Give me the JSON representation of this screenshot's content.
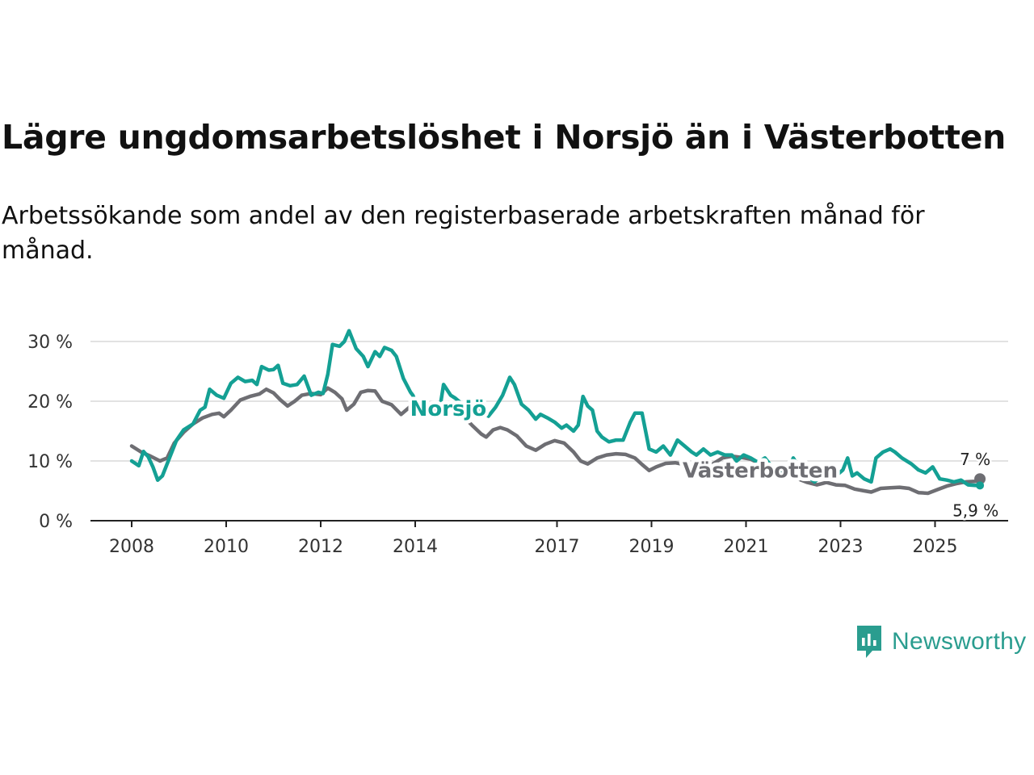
{
  "header": {
    "title": "Lägre ungdomsarbetslöshet i Norsjö än i Västerbotten",
    "subtitle": "Arbetssökande som andel av den registerbaserade arbetskraften månad för månad."
  },
  "brand": {
    "name": "Newsworthy",
    "color": "#2a9d8f"
  },
  "chart_data": {
    "type": "line",
    "title": "Lägre ungdomsarbetslöshet i Norsjö än i Västerbotten",
    "subtitle": "Arbetssökande som andel av den registerbaserade arbetskraften månad för månad.",
    "xlabel": "",
    "ylabel": "",
    "xlim": [
      2007.0,
      2026.5
    ],
    "ylim": [
      0,
      31
    ],
    "y_ticks": [
      {
        "value": 0,
        "label": "0 %"
      },
      {
        "value": 10,
        "label": "10 %"
      },
      {
        "value": 20,
        "label": "20 %"
      },
      {
        "value": 30,
        "label": "30 %"
      }
    ],
    "x_ticks": [
      {
        "value": 2008,
        "label": "2008"
      },
      {
        "value": 2010,
        "label": "2010"
      },
      {
        "value": 2012,
        "label": "2012"
      },
      {
        "value": 2014,
        "label": "2014"
      },
      {
        "value": 2017,
        "label": "2017"
      },
      {
        "value": 2019,
        "label": "2019"
      },
      {
        "value": 2021,
        "label": "2021"
      },
      {
        "value": 2023,
        "label": "2023"
      },
      {
        "value": 2025,
        "label": "2025"
      }
    ],
    "grid": true,
    "series": [
      {
        "name": "Västerbotten",
        "color": "#6e6e73",
        "end_label": "7 %",
        "points": [
          [
            2008.0,
            12.5
          ],
          [
            2008.2,
            11.5
          ],
          [
            2008.4,
            10.8
          ],
          [
            2008.6,
            10.0
          ],
          [
            2008.75,
            10.5
          ],
          [
            2008.9,
            13.0
          ],
          [
            2009.1,
            14.8
          ],
          [
            2009.3,
            16.2
          ],
          [
            2009.5,
            17.2
          ],
          [
            2009.7,
            17.8
          ],
          [
            2009.85,
            18.0
          ],
          [
            2009.95,
            17.4
          ],
          [
            2010.1,
            18.5
          ],
          [
            2010.3,
            20.2
          ],
          [
            2010.5,
            20.8
          ],
          [
            2010.7,
            21.2
          ],
          [
            2010.85,
            22.0
          ],
          [
            2011.0,
            21.4
          ],
          [
            2011.15,
            20.2
          ],
          [
            2011.3,
            19.2
          ],
          [
            2011.45,
            20.0
          ],
          [
            2011.6,
            21.0
          ],
          [
            2011.8,
            21.3
          ],
          [
            2012.0,
            21.1
          ],
          [
            2012.15,
            22.2
          ],
          [
            2012.3,
            21.5
          ],
          [
            2012.45,
            20.4
          ],
          [
            2012.55,
            18.5
          ],
          [
            2012.7,
            19.5
          ],
          [
            2012.85,
            21.5
          ],
          [
            2013.0,
            21.8
          ],
          [
            2013.15,
            21.7
          ],
          [
            2013.3,
            20.0
          ],
          [
            2013.5,
            19.4
          ],
          [
            2013.7,
            17.8
          ],
          [
            2013.85,
            18.8
          ],
          [
            2014.0,
            20.0
          ],
          [
            2014.2,
            19.8
          ],
          [
            2014.4,
            19.4
          ],
          [
            2014.6,
            19.0
          ],
          [
            2014.8,
            18.0
          ],
          [
            2015.0,
            17.6
          ],
          [
            2015.2,
            16.0
          ],
          [
            2015.4,
            14.5
          ],
          [
            2015.5,
            14.0
          ],
          [
            2015.65,
            15.2
          ],
          [
            2015.8,
            15.6
          ],
          [
            2015.95,
            15.2
          ],
          [
            2016.15,
            14.2
          ],
          [
            2016.35,
            12.5
          ],
          [
            2016.55,
            11.8
          ],
          [
            2016.75,
            12.8
          ],
          [
            2016.95,
            13.4
          ],
          [
            2017.15,
            13.0
          ],
          [
            2017.35,
            11.5
          ],
          [
            2017.5,
            10.0
          ],
          [
            2017.65,
            9.5
          ],
          [
            2017.85,
            10.5
          ],
          [
            2018.05,
            11.0
          ],
          [
            2018.25,
            11.2
          ],
          [
            2018.45,
            11.1
          ],
          [
            2018.65,
            10.5
          ],
          [
            2018.8,
            9.4
          ],
          [
            2018.95,
            8.4
          ],
          [
            2019.1,
            9.0
          ],
          [
            2019.3,
            9.6
          ],
          [
            2019.5,
            9.7
          ],
          [
            2019.7,
            9.4
          ],
          [
            2019.9,
            8.2
          ],
          [
            2020.1,
            8.5
          ],
          [
            2020.3,
            9.5
          ],
          [
            2020.5,
            10.5
          ],
          [
            2020.7,
            10.8
          ],
          [
            2020.9,
            10.6
          ],
          [
            2021.1,
            10.3
          ],
          [
            2021.3,
            9.5
          ],
          [
            2021.5,
            8.8
          ],
          [
            2021.7,
            8.3
          ],
          [
            2021.9,
            7.6
          ],
          [
            2022.1,
            7.0
          ],
          [
            2022.3,
            6.4
          ],
          [
            2022.5,
            6.0
          ],
          [
            2022.7,
            6.4
          ],
          [
            2022.9,
            6.0
          ],
          [
            2023.1,
            5.9
          ],
          [
            2023.3,
            5.3
          ],
          [
            2023.5,
            5.0
          ],
          [
            2023.65,
            4.8
          ],
          [
            2023.85,
            5.4
          ],
          [
            2024.05,
            5.5
          ],
          [
            2024.25,
            5.6
          ],
          [
            2024.45,
            5.4
          ],
          [
            2024.65,
            4.7
          ],
          [
            2024.85,
            4.6
          ],
          [
            2025.05,
            5.2
          ],
          [
            2025.25,
            5.8
          ],
          [
            2025.45,
            6.2
          ],
          [
            2025.65,
            6.5
          ],
          [
            2025.85,
            6.6
          ],
          [
            2025.95,
            7.0
          ]
        ]
      },
      {
        "name": "Norsjö",
        "color": "#14a094",
        "end_label": "5,9 %",
        "points": [
          [
            2008.0,
            10.0
          ],
          [
            2008.15,
            9.2
          ],
          [
            2008.25,
            11.6
          ],
          [
            2008.35,
            10.7
          ],
          [
            2008.45,
            9.0
          ],
          [
            2008.55,
            6.8
          ],
          [
            2008.65,
            7.5
          ],
          [
            2008.8,
            10.5
          ],
          [
            2008.95,
            13.5
          ],
          [
            2009.1,
            15.2
          ],
          [
            2009.3,
            16.2
          ],
          [
            2009.45,
            18.5
          ],
          [
            2009.55,
            19.0
          ],
          [
            2009.65,
            22.0
          ],
          [
            2009.8,
            21.0
          ],
          [
            2009.95,
            20.5
          ],
          [
            2010.1,
            23.0
          ],
          [
            2010.25,
            24.0
          ],
          [
            2010.4,
            23.3
          ],
          [
            2010.55,
            23.5
          ],
          [
            2010.65,
            22.8
          ],
          [
            2010.75,
            25.8
          ],
          [
            2010.9,
            25.2
          ],
          [
            2011.0,
            25.3
          ],
          [
            2011.1,
            26.0
          ],
          [
            2011.2,
            23.0
          ],
          [
            2011.35,
            22.6
          ],
          [
            2011.5,
            22.8
          ],
          [
            2011.65,
            24.2
          ],
          [
            2011.8,
            21.0
          ],
          [
            2011.95,
            21.5
          ],
          [
            2012.05,
            21.3
          ],
          [
            2012.15,
            24.5
          ],
          [
            2012.25,
            29.5
          ],
          [
            2012.4,
            29.2
          ],
          [
            2012.5,
            30.0
          ],
          [
            2012.6,
            31.8
          ],
          [
            2012.75,
            28.8
          ],
          [
            2012.9,
            27.5
          ],
          [
            2013.0,
            25.8
          ],
          [
            2013.15,
            28.3
          ],
          [
            2013.25,
            27.5
          ],
          [
            2013.35,
            29.0
          ],
          [
            2013.5,
            28.5
          ],
          [
            2013.6,
            27.5
          ],
          [
            2013.75,
            23.8
          ],
          [
            2013.9,
            21.5
          ],
          [
            2013.95,
            21.0
          ],
          [
            2014.1,
            18.0
          ],
          [
            2014.2,
            17.5
          ],
          [
            2014.3,
            19.5
          ],
          [
            2014.4,
            19.5
          ],
          [
            2014.5,
            17.8
          ],
          [
            2014.6,
            22.8
          ],
          [
            2014.75,
            21.0
          ],
          [
            2014.85,
            20.5
          ],
          [
            2015.0,
            19.5
          ],
          [
            2015.15,
            19.2
          ],
          [
            2015.3,
            19.5
          ],
          [
            2015.45,
            18.0
          ],
          [
            2015.55,
            17.5
          ],
          [
            2015.7,
            19.0
          ],
          [
            2015.85,
            21.0
          ],
          [
            2016.0,
            24.0
          ],
          [
            2016.1,
            22.8
          ],
          [
            2016.25,
            19.5
          ],
          [
            2016.4,
            18.5
          ],
          [
            2016.55,
            17.0
          ],
          [
            2016.65,
            17.8
          ],
          [
            2016.8,
            17.2
          ],
          [
            2016.95,
            16.5
          ],
          [
            2017.1,
            15.5
          ],
          [
            2017.2,
            16.0
          ],
          [
            2017.35,
            15.0
          ],
          [
            2017.45,
            16.0
          ],
          [
            2017.55,
            20.8
          ],
          [
            2017.65,
            19.2
          ],
          [
            2017.75,
            18.5
          ],
          [
            2017.85,
            15.0
          ],
          [
            2017.95,
            14.0
          ],
          [
            2018.1,
            13.2
          ],
          [
            2018.25,
            13.5
          ],
          [
            2018.4,
            13.5
          ],
          [
            2018.55,
            16.5
          ],
          [
            2018.65,
            18.0
          ],
          [
            2018.8,
            18.0
          ],
          [
            2018.95,
            12.0
          ],
          [
            2019.1,
            11.5
          ],
          [
            2019.25,
            12.5
          ],
          [
            2019.4,
            11.0
          ],
          [
            2019.55,
            13.5
          ],
          [
            2019.7,
            12.5
          ],
          [
            2019.85,
            11.5
          ],
          [
            2019.95,
            11.0
          ]
        ]
      },
      {
        "name": "Norsjö",
        "color": "#14a094",
        "segment": 2,
        "points": [
          [
            2019.95,
            11.0
          ],
          [
            2020.1,
            12.0
          ],
          [
            2020.25,
            11.0
          ],
          [
            2020.4,
            11.5
          ],
          [
            2020.55,
            11.0
          ],
          [
            2020.7,
            11.0
          ],
          [
            2020.8,
            10.0
          ],
          [
            2020.95,
            11.0
          ],
          [
            2021.1,
            10.5
          ],
          [
            2021.25,
            9.8
          ],
          [
            2021.4,
            10.5
          ],
          [
            2021.55,
            9.0
          ],
          [
            2021.7,
            8.0
          ],
          [
            2021.85,
            7.5
          ],
          [
            2022.0,
            10.5
          ],
          [
            2022.15,
            8.5
          ],
          [
            2022.3,
            7.5
          ],
          [
            2022.45,
            6.5
          ],
          [
            2022.6,
            7.5
          ],
          [
            2022.75,
            8.0
          ],
          [
            2022.9,
            7.5
          ],
          [
            2023.05,
            8.5
          ],
          [
            2023.15,
            10.5
          ],
          [
            2023.25,
            7.5
          ],
          [
            2023.35,
            8.0
          ],
          [
            2023.5,
            7.0
          ],
          [
            2023.65,
            6.5
          ],
          [
            2023.75,
            10.5
          ],
          [
            2023.9,
            11.5
          ],
          [
            2024.05,
            12.0
          ],
          [
            2024.15,
            11.5
          ],
          [
            2024.3,
            10.5
          ],
          [
            2024.5,
            9.5
          ],
          [
            2024.65,
            8.5
          ],
          [
            2024.8,
            8.0
          ],
          [
            2024.95,
            9.0
          ],
          [
            2025.1,
            7.0
          ],
          [
            2025.25,
            6.8
          ],
          [
            2025.4,
            6.5
          ],
          [
            2025.55,
            6.8
          ],
          [
            2025.7,
            6.0
          ],
          [
            2025.85,
            5.9
          ],
          [
            2025.95,
            5.9
          ]
        ]
      }
    ],
    "labels": [
      {
        "text": "Norsjö",
        "series": "Norsjö",
        "x": 2014.7,
        "y": 17.6
      },
      {
        "text": "Västerbotten",
        "series": "Västerbotten",
        "x": 2021.3,
        "y": 7.2
      }
    ]
  }
}
